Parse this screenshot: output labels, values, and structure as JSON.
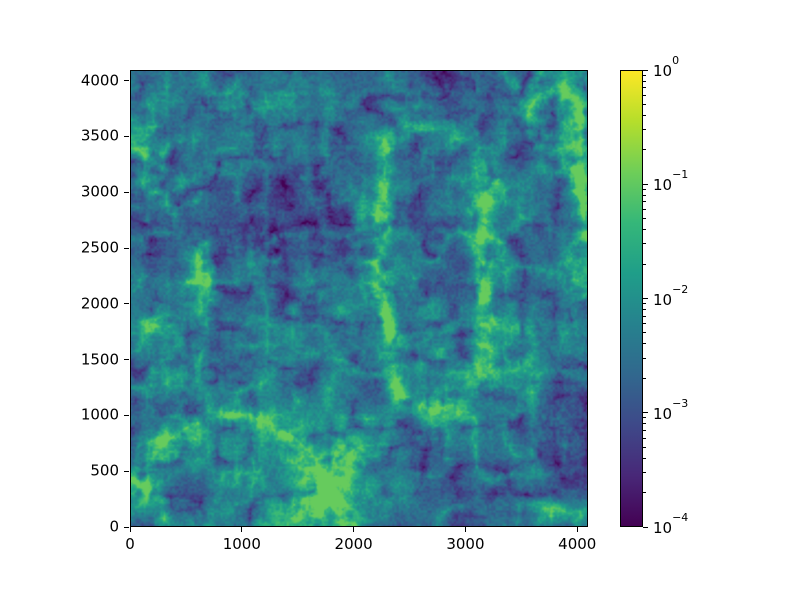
{
  "figure": {
    "background": "#ffffff",
    "spine_color": "#000000",
    "tick_color": "#000000",
    "text_color": "#000000"
  },
  "chart_data": {
    "type": "heatmap",
    "title": "",
    "xlabel": "",
    "ylabel": "",
    "x_range": [
      0,
      4096
    ],
    "y_range": [
      0,
      4096
    ],
    "x_ticks": [
      0,
      1000,
      2000,
      3000,
      4000
    ],
    "x_tick_labels": [
      "0",
      "1000",
      "2000",
      "3000",
      "4000"
    ],
    "y_ticks": [
      0,
      500,
      1000,
      1500,
      2000,
      2500,
      3000,
      3500,
      4000
    ],
    "y_tick_labels": [
      "0",
      "500",
      "1000",
      "1500",
      "2000",
      "2500",
      "3000",
      "3500",
      "4000"
    ],
    "grid": false,
    "legend": false,
    "content_description": "Cosmic-web-like 2D matter density field: dark purple voids, blue-teal wall structure, bright green filaments and nodes, rendered with a logarithmic viridis color scale",
    "color_scale": {
      "type": "log",
      "vmin": 0.0001,
      "vmax": 1,
      "colormap": "viridis",
      "decades": 4,
      "major_tick_labels": [
        {
          "base": "10",
          "exp": "0"
        },
        {
          "base": "10",
          "exp": "−1"
        },
        {
          "base": "10",
          "exp": "−2"
        },
        {
          "base": "10",
          "exp": "−3"
        },
        {
          "base": "10",
          "exp": "−4"
        }
      ],
      "minor_ticks_per_decade": [
        2,
        3,
        4,
        5,
        6,
        7,
        8,
        9
      ]
    },
    "colormap_anchors": [
      "#440154",
      "#482878",
      "#3e4989",
      "#31688e",
      "#26828e",
      "#1f9e89",
      "#35b779",
      "#6ece58",
      "#b5de2b",
      "#fde725"
    ],
    "field_levels": {
      "void_log10": -3.8,
      "background_log10": -2.6,
      "wall_log10": -1.9,
      "filament_log10": -1.1
    }
  }
}
